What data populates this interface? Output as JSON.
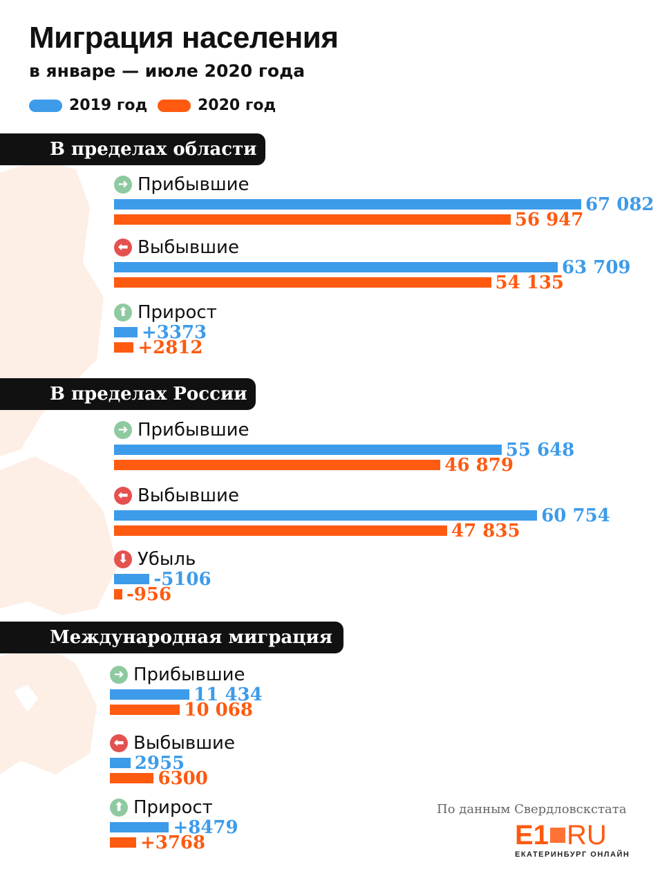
{
  "header": {
    "title": "Миграция населения",
    "subtitle": "в январе — июле 2020 года"
  },
  "legend": [
    {
      "label": "2019 год",
      "color": "#3d9be9"
    },
    {
      "label": "2020 год",
      "color": "#fe5a10"
    }
  ],
  "colors": {
    "y2019": "#3d9be9",
    "y2020": "#fe5a10",
    "icon_in": "#8ec9a0",
    "icon_out": "#e4524f"
  },
  "chart_data": [
    {
      "type": "bar",
      "title": "В пределах области",
      "groups": [
        {
          "label": "Прибывшие",
          "icon": "arrow-right-icon",
          "values": [
            67082,
            56947
          ],
          "labels": [
            "67 082",
            "56 947"
          ]
        },
        {
          "label": "Выбывшие",
          "icon": "arrow-left-icon",
          "values": [
            63709,
            54135
          ],
          "labels": [
            "63 709",
            "54 135"
          ]
        },
        {
          "label": "Прирост",
          "icon": "arrow-up-icon",
          "values": [
            3373,
            2812
          ],
          "labels": [
            "+3373",
            "+2812"
          ]
        }
      ],
      "series": [
        {
          "name": "2019 год"
        },
        {
          "name": "2020 год"
        }
      ]
    },
    {
      "type": "bar",
      "title": "В пределах России",
      "groups": [
        {
          "label": "Прибывшие",
          "icon": "arrow-right-icon",
          "values": [
            55648,
            46879
          ],
          "labels": [
            "55 648",
            "46 879"
          ]
        },
        {
          "label": "Выбывшие",
          "icon": "arrow-left-icon",
          "values": [
            60754,
            47835
          ],
          "labels": [
            "60 754",
            "47 835"
          ]
        },
        {
          "label": "Убыль",
          "icon": "arrow-down-icon",
          "values": [
            -5106,
            -956
          ],
          "labels": [
            "-5106",
            "-956"
          ]
        }
      ],
      "series": [
        {
          "name": "2019 год"
        },
        {
          "name": "2020 год"
        }
      ]
    },
    {
      "type": "bar",
      "title": "Международная миграция",
      "groups": [
        {
          "label": "Прибывшие",
          "icon": "arrow-right-icon",
          "values": [
            11434,
            10068
          ],
          "labels": [
            "11 434",
            "10 068"
          ]
        },
        {
          "label": "Выбывшие",
          "icon": "arrow-left-icon",
          "values": [
            2955,
            6300
          ],
          "labels": [
            "2955",
            "6300"
          ]
        },
        {
          "label": "Прирост",
          "icon": "arrow-up-icon",
          "values": [
            8479,
            3768
          ],
          "labels": [
            "+8479",
            "+3768"
          ]
        }
      ],
      "series": [
        {
          "name": "2019 год"
        },
        {
          "name": "2020 год"
        }
      ]
    }
  ],
  "footer": {
    "source": "По данным Свердловскстата",
    "logo_main": "E1",
    "logo_ru": "RU",
    "logo_tagline": "ЕКАТЕРИНБУРГ ОНЛАЙН"
  }
}
